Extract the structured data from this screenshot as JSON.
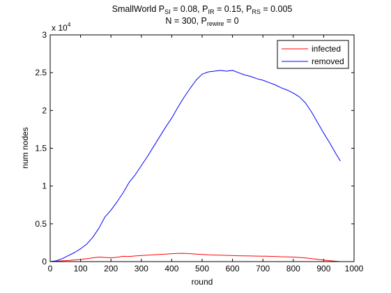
{
  "chart_data": {
    "type": "line",
    "title": {
      "line1": {
        "prefix": "SmallWorld P",
        "sub1": "SI",
        "mid1": " = 0.08, P",
        "sub2": "IR",
        "mid2": " = 0.15, P",
        "sub3": "RS",
        "suffix": " = 0.005"
      },
      "line2": {
        "prefix": "N = 300, P",
        "sub": "rewire",
        "suffix": " = 0"
      }
    },
    "xlabel": "round",
    "ylabel": "num nodes",
    "xlim": [
      0,
      1000
    ],
    "ylim": [
      0,
      30000
    ],
    "xticks": [
      "0",
      "100",
      "200",
      "300",
      "400",
      "500",
      "600",
      "700",
      "800",
      "900",
      "1000"
    ],
    "yticks": [
      "0",
      "0.5",
      "1",
      "1.5",
      "2",
      "2.5",
      "3"
    ],
    "y_multiplier": {
      "base": "x 10",
      "exponent": "4"
    },
    "legend_position": "top-right",
    "series": [
      {
        "name": "infected",
        "color": "#ff0000",
        "points": [
          [
            0,
            0
          ],
          [
            20,
            50
          ],
          [
            40,
            100
          ],
          [
            60,
            150
          ],
          [
            80,
            220
          ],
          [
            100,
            300
          ],
          [
            120,
            380
          ],
          [
            140,
            500
          ],
          [
            160,
            600
          ],
          [
            180,
            550
          ],
          [
            200,
            500
          ],
          [
            220,
            580
          ],
          [
            240,
            700
          ],
          [
            260,
            680
          ],
          [
            280,
            750
          ],
          [
            300,
            800
          ],
          [
            320,
            850
          ],
          [
            340,
            900
          ],
          [
            360,
            950
          ],
          [
            380,
            1000
          ],
          [
            400,
            1050
          ],
          [
            420,
            1080
          ],
          [
            440,
            1100
          ],
          [
            460,
            1050
          ],
          [
            480,
            1000
          ],
          [
            500,
            950
          ],
          [
            520,
            900
          ],
          [
            540,
            870
          ],
          [
            560,
            850
          ],
          [
            580,
            820
          ],
          [
            600,
            800
          ],
          [
            620,
            780
          ],
          [
            640,
            760
          ],
          [
            660,
            750
          ],
          [
            680,
            730
          ],
          [
            700,
            720
          ],
          [
            720,
            700
          ],
          [
            740,
            680
          ],
          [
            760,
            650
          ],
          [
            780,
            630
          ],
          [
            800,
            600
          ],
          [
            820,
            550
          ],
          [
            840,
            480
          ],
          [
            860,
            400
          ],
          [
            880,
            300
          ],
          [
            900,
            200
          ],
          [
            920,
            120
          ],
          [
            940,
            50
          ],
          [
            955,
            0
          ]
        ]
      },
      {
        "name": "removed",
        "color": "#0000ff",
        "points": [
          [
            0,
            0
          ],
          [
            20,
            100
          ],
          [
            40,
            400
          ],
          [
            60,
            800
          ],
          [
            80,
            1200
          ],
          [
            100,
            1700
          ],
          [
            120,
            2300
          ],
          [
            140,
            3200
          ],
          [
            160,
            4400
          ],
          [
            180,
            5900
          ],
          [
            200,
            6800
          ],
          [
            220,
            7900
          ],
          [
            240,
            9100
          ],
          [
            260,
            10500
          ],
          [
            280,
            11500
          ],
          [
            300,
            12700
          ],
          [
            320,
            13900
          ],
          [
            340,
            15200
          ],
          [
            360,
            16500
          ],
          [
            380,
            17800
          ],
          [
            400,
            19000
          ],
          [
            420,
            20400
          ],
          [
            440,
            21700
          ],
          [
            460,
            22900
          ],
          [
            480,
            24000
          ],
          [
            500,
            24800
          ],
          [
            520,
            25100
          ],
          [
            540,
            25200
          ],
          [
            560,
            25300
          ],
          [
            580,
            25200
          ],
          [
            600,
            25300
          ],
          [
            620,
            25000
          ],
          [
            640,
            24700
          ],
          [
            660,
            24500
          ],
          [
            680,
            24200
          ],
          [
            700,
            24000
          ],
          [
            720,
            23700
          ],
          [
            740,
            23400
          ],
          [
            760,
            23000
          ],
          [
            780,
            22700
          ],
          [
            800,
            22300
          ],
          [
            820,
            21800
          ],
          [
            840,
            21000
          ],
          [
            860,
            19800
          ],
          [
            880,
            18400
          ],
          [
            900,
            17000
          ],
          [
            920,
            15700
          ],
          [
            940,
            14300
          ],
          [
            955,
            13300
          ]
        ]
      }
    ]
  }
}
